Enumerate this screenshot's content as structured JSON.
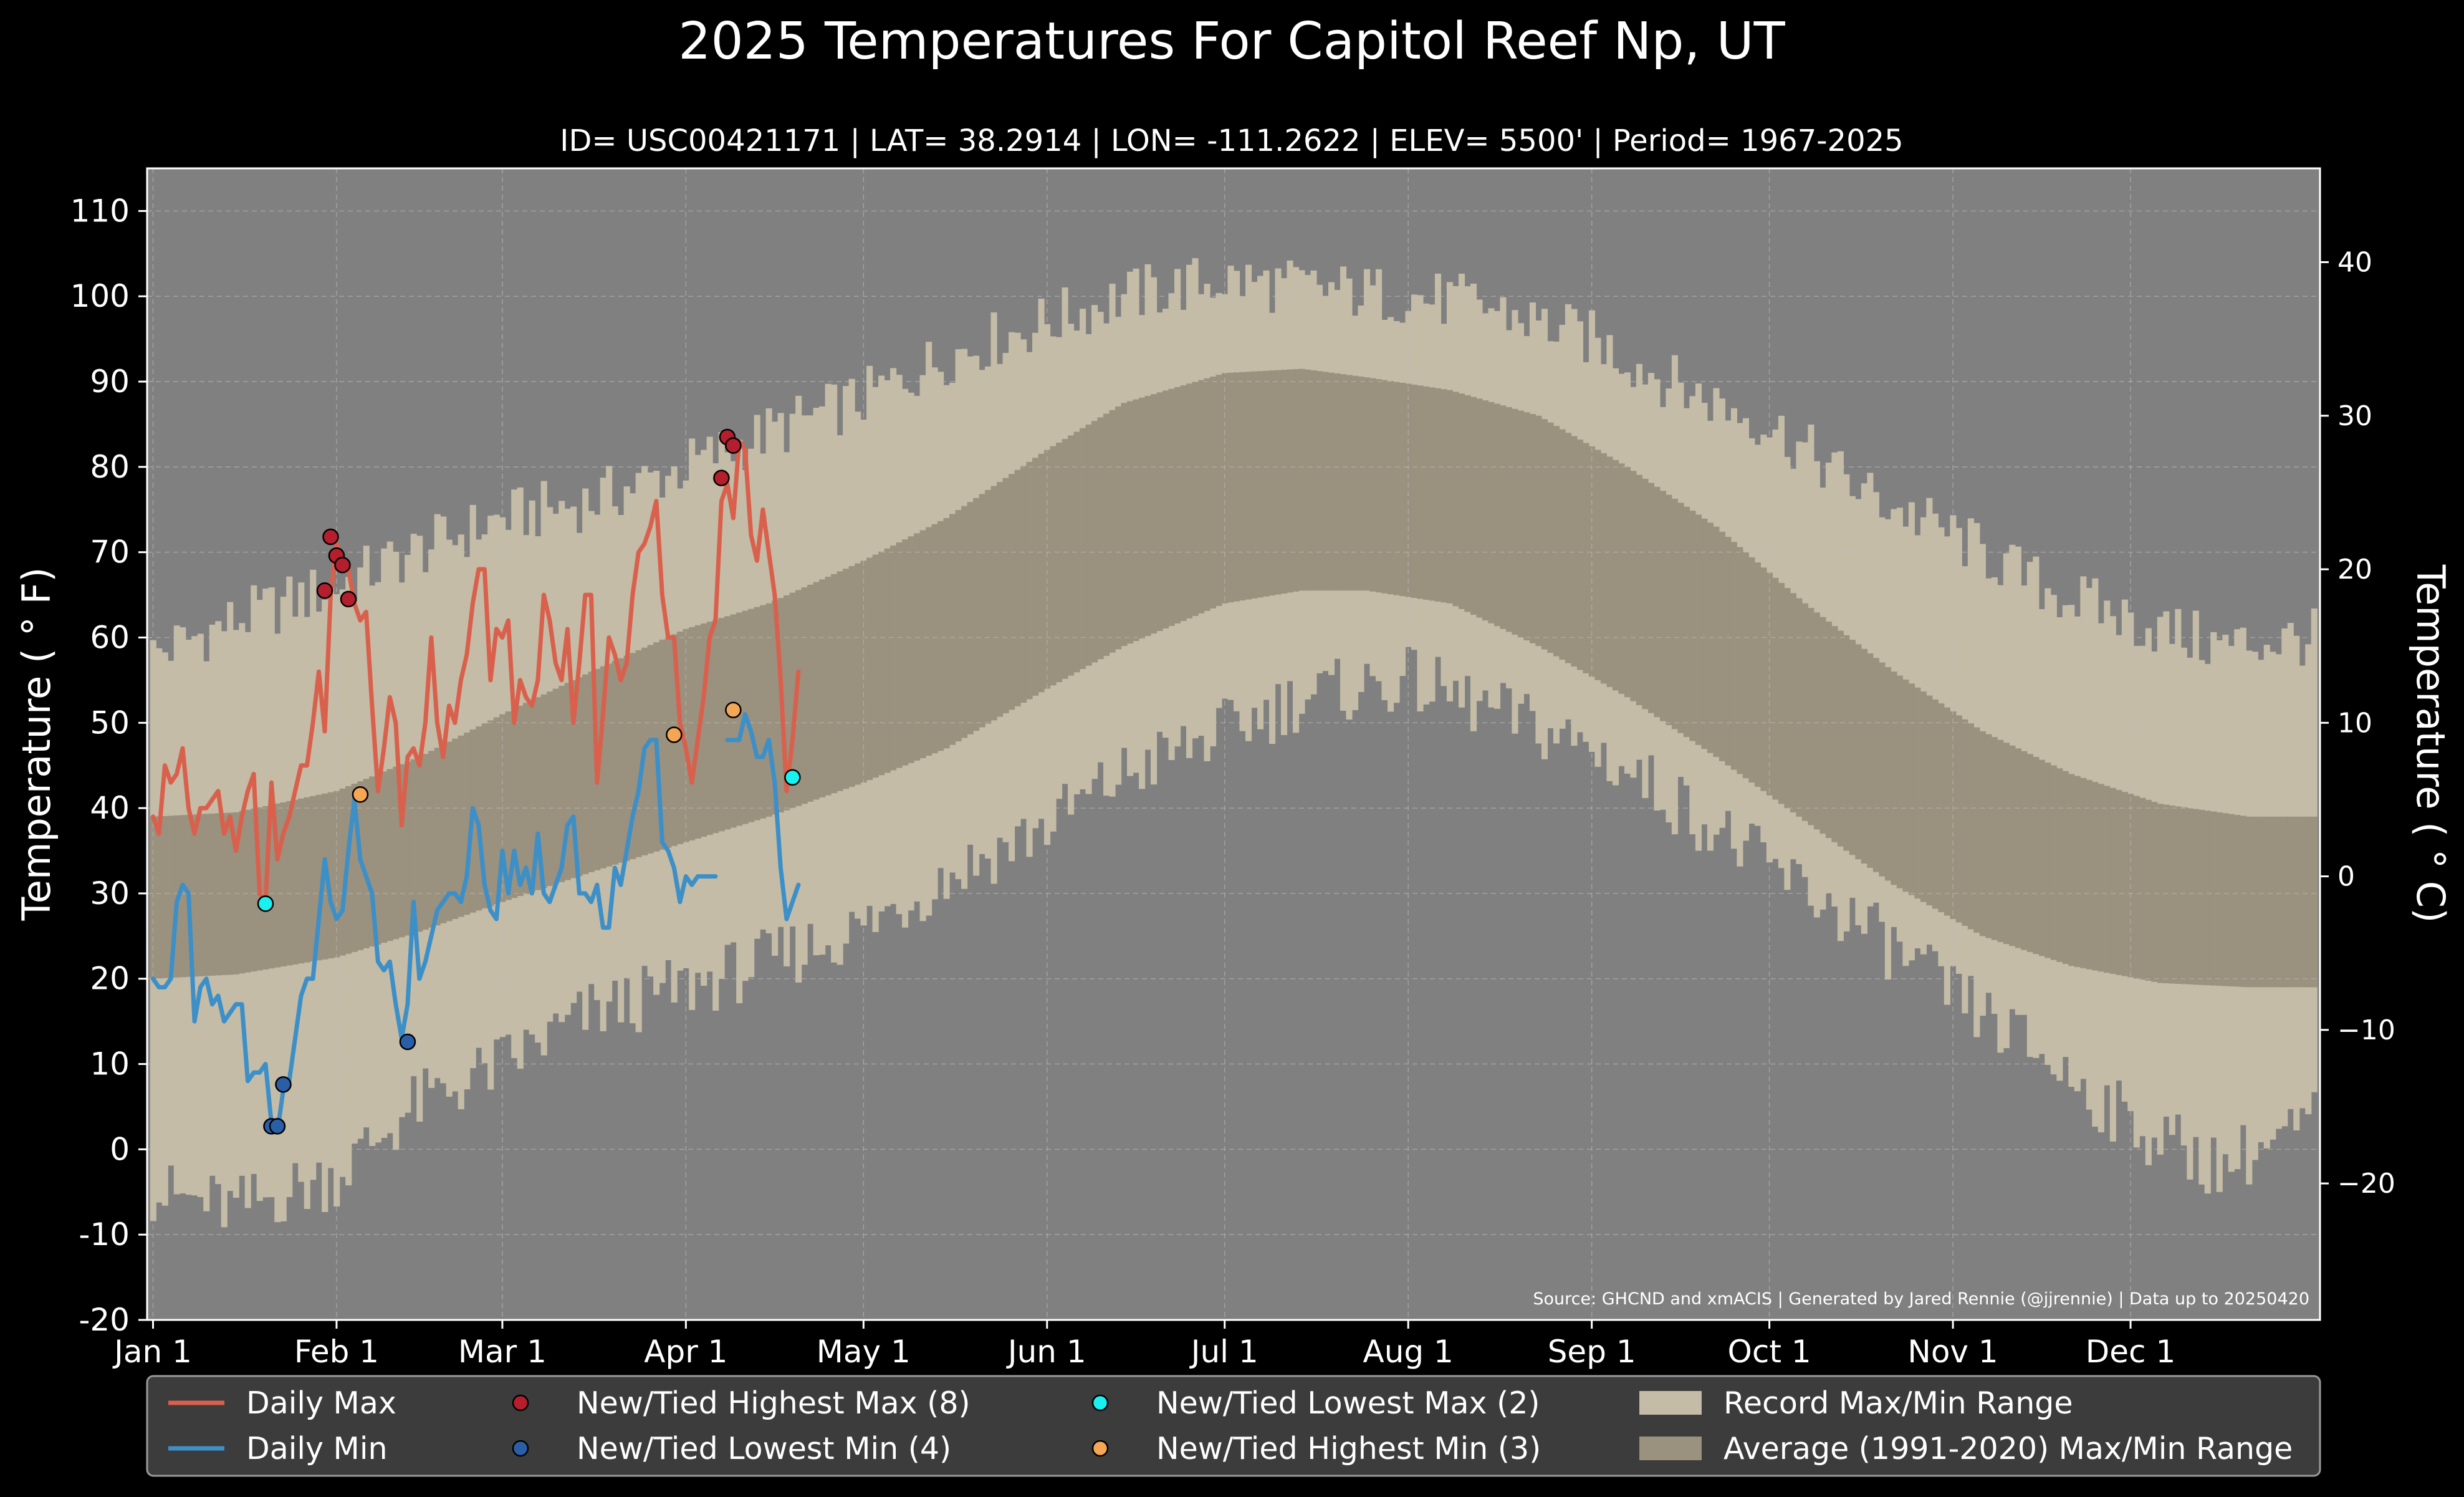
{
  "title": "2025 Temperatures For Capitol Reef Np, UT",
  "subtitle": "ID= USC00421171 | LAT= 38.2914 | LON= -111.2622 | ELEV= 5500' | Period= 1967-2025",
  "source": "Source: GHCND and xmACIS | Generated by Jared Rennie (@jjrennie) | Data up to 20250420",
  "colors": {
    "background": "#000000",
    "plot_bg": "#808080",
    "record_range": "#c4bca6",
    "normal_range": "#9a917e",
    "daily_max": "#d9604c",
    "daily_min": "#3d8fc8",
    "new_high_max": "#b41e2d",
    "new_low_min": "#2a5fa8",
    "new_low_max": "#19f0f0",
    "new_high_min": "#f5a654",
    "grid": "#bdbdbd",
    "legend_bg": "#3c3c3c"
  },
  "chart_data": {
    "type": "line",
    "xlabel": "",
    "ylabel": "Temperature ($^\\circ$F)",
    "ylabel_display": "Temperature ( ° F)",
    "ylabel_right": "Temperature ( ° C)",
    "ylim": [
      -20,
      115
    ],
    "xlim": [
      1,
      366
    ],
    "yticks": [
      -20,
      -10,
      0,
      10,
      20,
      30,
      40,
      50,
      60,
      70,
      80,
      90,
      100,
      110
    ],
    "ytick_labels": [
      "-20",
      "-10",
      "0",
      "10",
      "20",
      "30",
      "40",
      "50",
      "60",
      "70",
      "80",
      "90",
      "100",
      "110"
    ],
    "yticks_right": [
      -20,
      -10,
      0,
      10,
      20,
      30,
      40
    ],
    "ytick_right_labels": [
      "−20",
      "−10",
      "0",
      "10",
      "20",
      "30",
      "40"
    ],
    "xticks": [
      1,
      32,
      60,
      91,
      121,
      152,
      182,
      213,
      244,
      274,
      305,
      335
    ],
    "xtick_labels": [
      "Jan 1",
      "Feb 1",
      "Mar 1",
      "Apr 1",
      "May 1",
      "Jun 1",
      "Jul 1",
      "Aug 1",
      "Sep 1",
      "Oct 1",
      "Nov 1",
      "Dec 1"
    ],
    "grid": true,
    "legend_position": "bottom",
    "record_range": {
      "anchor_days": [
        1,
        15,
        32,
        45,
        60,
        75,
        91,
        105,
        121,
        135,
        152,
        165,
        182,
        195,
        213,
        225,
        244,
        260,
        274,
        290,
        305,
        320,
        335,
        350,
        366
      ],
      "max": [
        58,
        62,
        66,
        70,
        74,
        76,
        80,
        84,
        88,
        93,
        97,
        100,
        102,
        101,
        100,
        99,
        95,
        89,
        85,
        77,
        72,
        66,
        62,
        59,
        60
      ],
      "min": [
        -5,
        -7,
        -3,
        5,
        10,
        16,
        19,
        22,
        26,
        32,
        38,
        44,
        49,
        53,
        55,
        52,
        47,
        40,
        33,
        26,
        18,
        11,
        3,
        -2,
        3
      ]
    },
    "normal_range": {
      "anchor_days": [
        1,
        15,
        32,
        46,
        60,
        75,
        91,
        105,
        121,
        135,
        152,
        165,
        182,
        195,
        206,
        220,
        235,
        250,
        265,
        280,
        295,
        310,
        325,
        340,
        355,
        366
      ],
      "max": [
        39,
        39.5,
        42,
        46,
        51,
        56,
        61,
        64,
        69,
        74,
        82,
        87.5,
        91,
        91.5,
        90.5,
        89,
        86,
        80,
        73,
        64,
        56,
        49,
        44,
        40.5,
        39,
        39
      ],
      "min": [
        20,
        20.5,
        22.5,
        25.5,
        29,
        32.5,
        36,
        39,
        43,
        47,
        54,
        59,
        64,
        65.5,
        65.5,
        64,
        59,
        53,
        46,
        38.5,
        31,
        25,
        21.5,
        19.5,
        19,
        19
      ]
    },
    "series": [
      {
        "name": "Daily Max",
        "x": [
          1,
          2,
          3,
          4,
          5,
          6,
          7,
          8,
          9,
          10,
          11,
          12,
          13,
          14,
          15,
          16,
          17,
          18,
          19,
          20,
          21,
          22,
          23,
          24,
          25,
          26,
          27,
          28,
          29,
          30,
          31,
          32,
          33,
          34,
          35,
          36,
          37,
          38,
          39,
          40,
          41,
          42,
          43,
          44,
          45,
          46,
          47,
          48,
          49,
          50,
          51,
          52,
          53,
          54,
          55,
          56,
          57,
          58,
          59,
          60,
          61,
          62,
          63,
          64,
          65,
          66,
          67,
          68,
          69,
          70,
          71,
          72,
          73,
          74,
          75,
          76,
          77,
          78,
          79,
          80,
          81,
          82,
          83,
          84,
          85,
          86,
          87,
          88,
          89,
          90,
          91,
          92,
          93,
          94,
          95,
          96,
          97,
          98,
          99,
          100,
          101,
          102,
          103,
          104,
          105,
          106,
          107,
          108,
          109,
          110
        ],
        "values": [
          39,
          37,
          45,
          43,
          44,
          47,
          40,
          37,
          40,
          40,
          41,
          42,
          37,
          39,
          35,
          39,
          42,
          44,
          30,
          29,
          43,
          34,
          37,
          39,
          42,
          45,
          45,
          50,
          56,
          49,
          65,
          71,
          69,
          68,
          64,
          62,
          63,
          52,
          42,
          47,
          53,
          50,
          38,
          46,
          47,
          45,
          50,
          60,
          50,
          46,
          52,
          50,
          55,
          58,
          64,
          68,
          68,
          55,
          61,
          60,
          62,
          50,
          55,
          53,
          52,
          55,
          65,
          62,
          57,
          55,
          61,
          50,
          57,
          65,
          65,
          43,
          51,
          60,
          58,
          55,
          57,
          65,
          70,
          71,
          73,
          76,
          65,
          60,
          60,
          50,
          47,
          43,
          48,
          53,
          60,
          62,
          76,
          78,
          74,
          83,
          82,
          72,
          69,
          75,
          70,
          65,
          55,
          42,
          48,
          56
        ]
      },
      {
        "name": "Daily Min",
        "x": [
          1,
          2,
          3,
          4,
          5,
          6,
          7,
          8,
          9,
          10,
          11,
          12,
          13,
          14,
          15,
          16,
          17,
          18,
          19,
          20,
          21,
          22,
          23,
          24,
          25,
          26,
          27,
          28,
          29,
          30,
          31,
          32,
          33,
          34,
          35,
          36,
          37,
          38,
          39,
          40,
          41,
          42,
          43,
          44,
          45,
          46,
          47,
          48,
          49,
          50,
          51,
          52,
          53,
          54,
          55,
          56,
          57,
          58,
          59,
          60,
          61,
          62,
          63,
          64,
          65,
          66,
          67,
          68,
          69,
          70,
          71,
          72,
          73,
          74,
          75,
          76,
          77,
          78,
          79,
          80,
          81,
          82,
          83,
          84,
          85,
          86,
          87,
          88,
          89,
          90,
          91,
          92,
          93,
          94,
          95,
          96,
          97,
          98,
          99,
          100,
          101,
          102,
          103,
          104,
          105,
          106,
          107,
          108,
          109,
          110
        ],
        "values": [
          20,
          19,
          19,
          20,
          29,
          31,
          30,
          15,
          19,
          20,
          17,
          18,
          15,
          16,
          17,
          17,
          8,
          9,
          9,
          10,
          3,
          2,
          7,
          8,
          13,
          18,
          20,
          20,
          27,
          34,
          29,
          27,
          28,
          35,
          41,
          34,
          32,
          30,
          22,
          21,
          22,
          17,
          13,
          17,
          29,
          20,
          22,
          25,
          28,
          29,
          30,
          30,
          29,
          32,
          40,
          38,
          31,
          28,
          27,
          35,
          30,
          35,
          31,
          33,
          30,
          37,
          30,
          29,
          31,
          33,
          38,
          39,
          30,
          30,
          29,
          31,
          26,
          26,
          33,
          31,
          35,
          39,
          42,
          47,
          48,
          48,
          36,
          35,
          33,
          29,
          32,
          31,
          32,
          32,
          32,
          32,
          null,
          48,
          48,
          48,
          51,
          49,
          46,
          46,
          48,
          43,
          33,
          27,
          29,
          31
        ]
      }
    ],
    "markers": [
      {
        "name": "New/Tied Highest Max (8)",
        "x": [
          30,
          31,
          32,
          33,
          34,
          97,
          98,
          99
        ],
        "values": [
          65.5,
          71.8,
          69.6,
          68.5,
          64.5,
          78.7,
          83.5,
          82.5
        ]
      },
      {
        "name": "New/Tied Lowest Min (4)",
        "x": [
          21,
          22,
          23,
          44
        ],
        "values": [
          2.7,
          2.7,
          7.6,
          12.6
        ]
      },
      {
        "name": "New/Tied Lowest Max (2)",
        "x": [
          20,
          109
        ],
        "values": [
          28.8,
          43.6
        ]
      },
      {
        "name": "New/Tied Highest Min (3)",
        "x": [
          36,
          89,
          99
        ],
        "values": [
          41.6,
          48.6,
          51.5
        ]
      }
    ],
    "legend": [
      {
        "label": "Daily Max",
        "kind": "line",
        "color": "#d9604c"
      },
      {
        "label": "New/Tied Highest Max (8)",
        "kind": "marker",
        "color": "#b41e2d"
      },
      {
        "label": "New/Tied Lowest Max (2)",
        "kind": "marker",
        "color": "#19f0f0"
      },
      {
        "label": "Record Max/Min Range",
        "kind": "patch",
        "color": "#c4bca6"
      },
      {
        "label": "Daily Min",
        "kind": "line",
        "color": "#3d8fc8"
      },
      {
        "label": "New/Tied Lowest Min (4)",
        "kind": "marker",
        "color": "#2a5fa8"
      },
      {
        "label": "New/Tied Highest Min (3)",
        "kind": "marker",
        "color": "#f5a654"
      },
      {
        "label": "Average (1991-2020) Max/Min Range",
        "kind": "patch",
        "color": "#9a917e"
      }
    ]
  }
}
